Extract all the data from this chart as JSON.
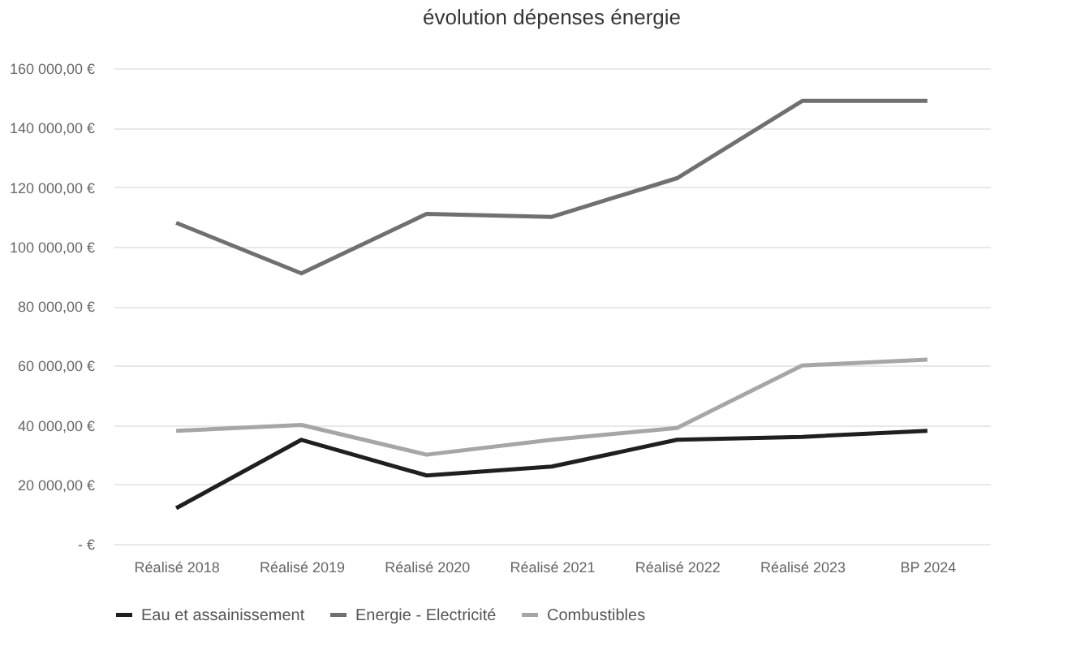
{
  "chart_data": {
    "type": "line",
    "title": "évolution dépenses énergie",
    "categories": [
      "Réalisé 2018",
      "Réalisé 2019",
      "Réalisé 2020",
      "Réalisé 2021",
      "Réalisé 2022",
      "Réalisé 2023",
      "BP 2024"
    ],
    "series": [
      {
        "name": "Eau et assainissement",
        "color": "#1f1f1f",
        "values": [
          12000,
          35000,
          23000,
          26000,
          35000,
          36000,
          38000
        ]
      },
      {
        "name": "Energie - Electricité",
        "color": "#707070",
        "values": [
          108000,
          91000,
          111000,
          110000,
          123000,
          149000,
          149000
        ]
      },
      {
        "name": "Combustibles",
        "color": "#a6a6a6",
        "values": [
          38000,
          40000,
          30000,
          35000,
          39000,
          60000,
          62000
        ]
      }
    ],
    "ylim": [
      0,
      160000
    ],
    "yticks": [
      {
        "value": 0,
        "label": "- €"
      },
      {
        "value": 20000,
        "label": "20 000,00 €"
      },
      {
        "value": 40000,
        "label": "40 000,00 €"
      },
      {
        "value": 60000,
        "label": "60 000,00 €"
      },
      {
        "value": 80000,
        "label": "80 000,00 €"
      },
      {
        "value": 100000,
        "label": "100 000,00 €"
      },
      {
        "value": 120000,
        "label": "120 000,00 €"
      },
      {
        "value": 140000,
        "label": "140 000,00 €"
      },
      {
        "value": 160000,
        "label": "160 000,00 €"
      }
    ],
    "grid": "y",
    "legend": "bottom",
    "line_style": "solid",
    "marker": "none"
  }
}
